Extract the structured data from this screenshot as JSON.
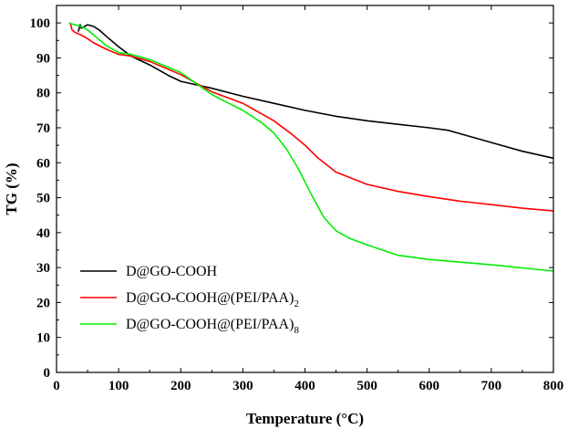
{
  "chart_data": {
    "type": "line",
    "xlabel": "Temperature (°C)",
    "ylabel": "TG (%)",
    "xlim": [
      0,
      800
    ],
    "ylim": [
      0,
      105
    ],
    "xticks": [
      0,
      100,
      200,
      300,
      400,
      500,
      600,
      700,
      800
    ],
    "yticks": [
      0,
      10,
      20,
      30,
      40,
      50,
      60,
      70,
      80,
      90,
      100
    ],
    "grid": false,
    "legend_position": "bottom-left",
    "series": [
      {
        "name": "D@GO-COOH",
        "legend_main": "D@GO-COOH",
        "legend_sub": "",
        "color": "#000000",
        "x": [
          35,
          38,
          40,
          50,
          60,
          70,
          80,
          100,
          120,
          150,
          180,
          200,
          250,
          300,
          350,
          400,
          450,
          500,
          550,
          600,
          630,
          650,
          700,
          750,
          800
        ],
        "y": [
          97.5,
          99.5,
          98.5,
          99.5,
          99.0,
          97.8,
          96.2,
          93.2,
          90.5,
          88.0,
          85.0,
          83.3,
          81.3,
          79.0,
          77.0,
          75.0,
          73.3,
          72.0,
          71.0,
          70.0,
          69.3,
          68.3,
          65.8,
          63.3,
          61.3
        ]
      },
      {
        "name": "D@GO-COOH@(PEI/PAA)2",
        "legend_main": "D@GO-COOH@(PEI/PAA)",
        "legend_sub": "2",
        "color": "#ff0000",
        "x": [
          22,
          25,
          30,
          40,
          50,
          60,
          80,
          100,
          120,
          150,
          200,
          250,
          300,
          350,
          380,
          400,
          420,
          450,
          500,
          550,
          600,
          650,
          700,
          750,
          800
        ],
        "y": [
          100,
          98.0,
          97.3,
          96.5,
          95.5,
          94.3,
          92.5,
          91.0,
          90.5,
          89.0,
          85.2,
          80.3,
          77.0,
          72.0,
          68.0,
          65.0,
          61.5,
          57.3,
          53.8,
          51.8,
          50.3,
          49.0,
          48.0,
          47.0,
          46.2
        ]
      },
      {
        "name": "D@GO-COOH@(PEI/PAA)8",
        "legend_main": "D@GO-COOH@(PEI/PAA)",
        "legend_sub": "8",
        "color": "#00ee00",
        "x": [
          20,
          25,
          30,
          40,
          50,
          60,
          80,
          100,
          120,
          150,
          200,
          250,
          300,
          330,
          350,
          370,
          390,
          410,
          430,
          450,
          470,
          500,
          550,
          600,
          700,
          800
        ],
        "y": [
          100,
          99.7,
          99.5,
          99.0,
          98.0,
          96.5,
          93.5,
          91.5,
          91.0,
          89.5,
          85.8,
          79.5,
          75.0,
          71.5,
          68.5,
          64.0,
          58.0,
          51.0,
          44.5,
          40.5,
          38.5,
          36.5,
          33.5,
          32.3,
          30.8,
          29.0
        ]
      }
    ]
  }
}
